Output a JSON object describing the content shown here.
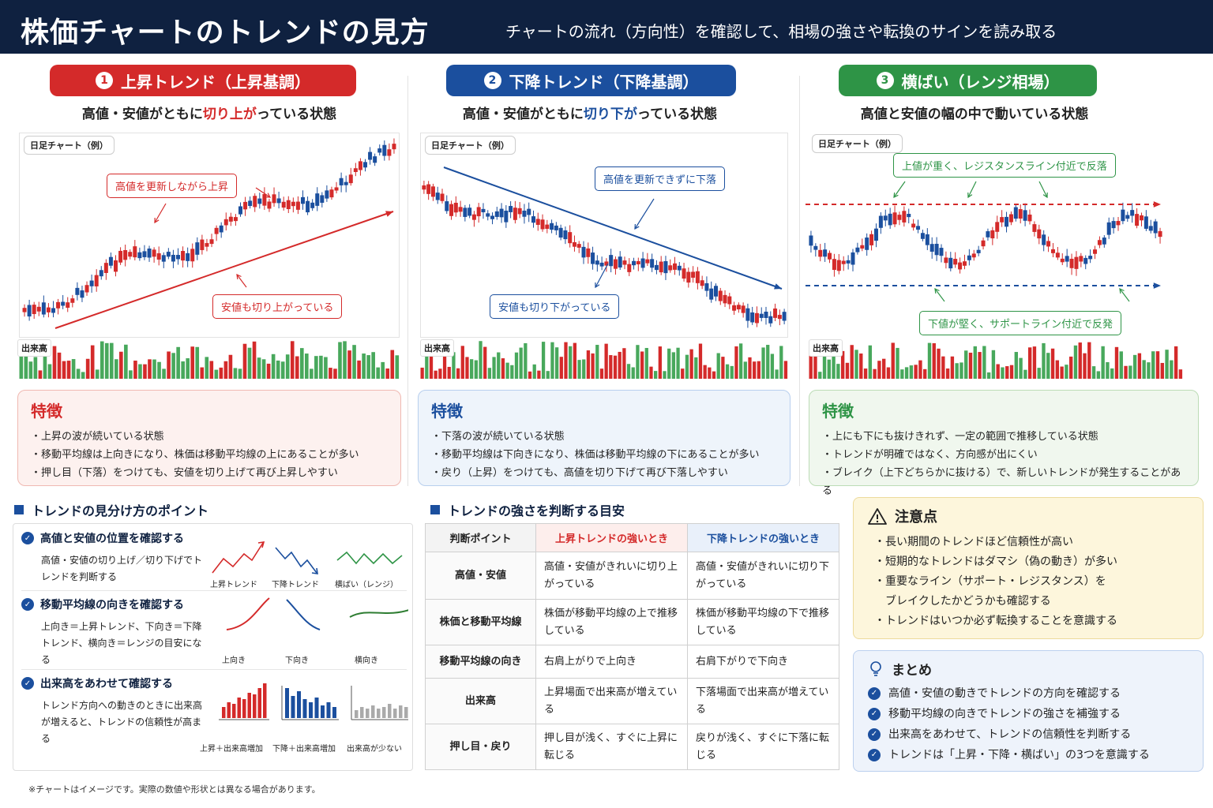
{
  "header": {
    "title": "株価チャートのトレンドの見方",
    "subtitle": "チャートの流れ（方向性）を確認して、相場の強さや転換のサインを読み取る"
  },
  "panels": [
    {
      "num": "1",
      "label": "上昇トレンド（上昇基調）",
      "desc_pre": "高値・安値がともに",
      "desc_hl": "切り上が",
      "desc_post": "っている状態",
      "chart_tag": "日足チャート（例）",
      "callout_a": "高値を更新しながら上昇",
      "callout_b": "安値も切り上がっている",
      "vol_tag": "出来高",
      "feature_title": "特徴",
      "features": [
        "・上昇の波が続いている状態",
        "・移動平均線は上向きになり、株価は移動平均線の上にあることが多い",
        "・押し目（下落）をつけても、安値を切り上げて再び上昇しやすい"
      ],
      "color": "#d42a2a"
    },
    {
      "num": "2",
      "label": "下降トレンド（下降基調）",
      "desc_pre": "高値・安値がともに",
      "desc_hl": "切り下が",
      "desc_post": "っている状態",
      "chart_tag": "日足チャート（例）",
      "callout_a": "高値を更新できずに下落",
      "callout_b": "安値も切り下がっている",
      "vol_tag": "出来高",
      "feature_title": "特徴",
      "features": [
        "・下落の波が続いている状態",
        "・移動平均線は下向きになり、株価は移動平均線の下にあることが多い",
        "・戻り（上昇）をつけても、高値を切り下げて再び下落しやすい"
      ],
      "color": "#1b4f9e"
    },
    {
      "num": "3",
      "label": "横ばい（レンジ相場）",
      "desc_pre": "高値と安値の幅の中で動いている状態",
      "desc_hl": "",
      "desc_post": "",
      "chart_tag": "日足チャート（例）",
      "callout_a": "上値が重く、レジスタンスライン付近で反落",
      "callout_b": "下値が堅く、サポートライン付近で反発",
      "vol_tag": "出来高",
      "feature_title": "特徴",
      "features": [
        "・上にも下にも抜けきれず、一定の範囲で推移している状態",
        "・トレンドが明確ではなく、方向感が出にくい",
        "・ブレイク（上下どちらかに抜ける）で、新しいトレンドが発生することがある"
      ],
      "color": "#2e9446"
    }
  ],
  "points": {
    "heading": "トレンドの見分け方のポイント",
    "items": [
      {
        "title": "高値と安値の位置を確認する",
        "desc": "高値・安値の切り上げ／切り下げでトレンドを判断する",
        "labels": [
          "上昇トレンド",
          "下降トレンド",
          "横ばい（レンジ）"
        ]
      },
      {
        "title": "移動平均線の向きを確認する",
        "desc": "上向き＝上昇トレンド、下向き＝下降トレンド、横向き＝レンジの目安になる",
        "labels": [
          "上向き",
          "下向き",
          "横向き"
        ]
      },
      {
        "title": "出来高をあわせて確認する",
        "desc": "トレンド方向への動きのときに出来高が増えると、トレンドの信頼性が高まる",
        "labels": [
          "上昇＋出来高増加",
          "下降＋出来高増加",
          "出来高が少ない"
        ]
      }
    ]
  },
  "strength": {
    "heading": "トレンドの強さを判断する目安",
    "headers": [
      "判断ポイント",
      "上昇トレンドの強いとき",
      "下降トレンドの強いとき"
    ],
    "rows": [
      [
        "高値・安値",
        "高値・安値がきれいに切り上がっている",
        "高値・安値がきれいに切り下がっている"
      ],
      [
        "株価と移動平均線",
        "株価が移動平均線の上で推移している",
        "株価が移動平均線の下で推移している"
      ],
      [
        "移動平均線の向き",
        "右肩上がりで上向き",
        "右肩下がりで下向き"
      ],
      [
        "出来高",
        "上昇場面で出来高が増えている",
        "下落場面で出来高が増えている"
      ],
      [
        "押し目・戻り",
        "押し目が浅く、すぐに上昇に転じる",
        "戻りが浅く、すぐに下落に転じる"
      ]
    ]
  },
  "caution": {
    "title": "注意点",
    "items": [
      "・長い期間のトレンドほど信頼性が高い",
      "・短期的なトレンドはダマシ（偽の動き）が多い",
      "・重要なライン（サポート・レジスタンス）を",
      "　ブレイクしたかどうかも確認する",
      "・トレンドはいつか必ず転換することを意識する"
    ]
  },
  "summary": {
    "title": "まとめ",
    "items": [
      "高値・安値の動きでトレンドの方向を確認する",
      "移動平均線の向きでトレンドの強さを補強する",
      "出来高をあわせて、トレンドの信頼性を判断する",
      "トレンドは「上昇・下降・横ばい」の3つを意識する"
    ]
  },
  "footnote": "※チャートはイメージです。実際の数値や形状とは異なる場合があります。",
  "colors": {
    "up": "#d42a2a",
    "down": "#1b4f9e",
    "range": "#2e9446",
    "navy": "#0f2140"
  }
}
